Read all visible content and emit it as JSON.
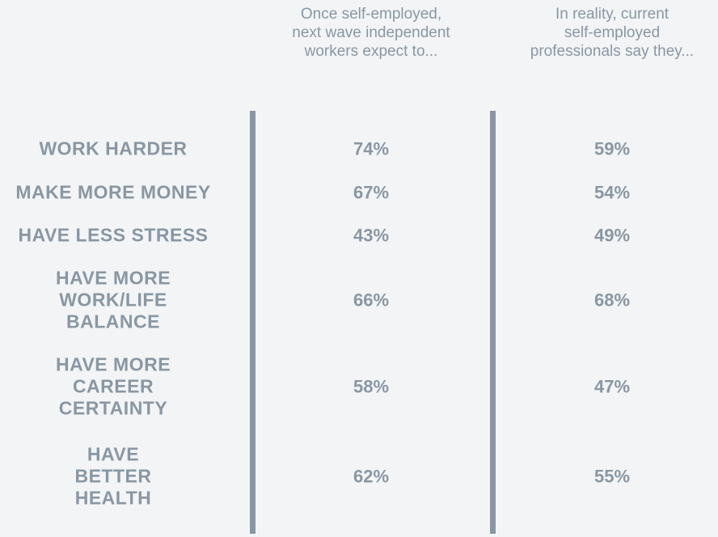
{
  "header": {
    "columns": [
      {
        "lines": [
          "Once self-employed,",
          "next wave independent",
          "workers expect to..."
        ]
      },
      {
        "lines": [
          "In reality, current",
          "self-employed",
          "professionals say they..."
        ]
      }
    ]
  },
  "table": {
    "rows": [
      {
        "label": [
          "WORK HARDER"
        ],
        "cells": [
          "74%",
          "59%"
        ]
      },
      {
        "label": [
          "MAKE MORE MONEY"
        ],
        "cells": [
          "67%",
          "54%"
        ]
      },
      {
        "label": [
          "HAVE LESS STRESS"
        ],
        "cells": [
          "43%",
          "49%"
        ]
      },
      {
        "label": [
          "HAVE MORE",
          "WORK/LIFE",
          "BALANCE"
        ],
        "cells": [
          "66%",
          "68%"
        ]
      },
      {
        "label": [
          "HAVE MORE",
          "CAREER",
          "CERTAINTY"
        ],
        "cells": [
          "58%",
          "47%"
        ]
      },
      {
        "label": [
          "HAVE",
          "BETTER",
          "HEALTH"
        ],
        "cells": [
          "62%",
          "55%"
        ]
      }
    ]
  }
}
